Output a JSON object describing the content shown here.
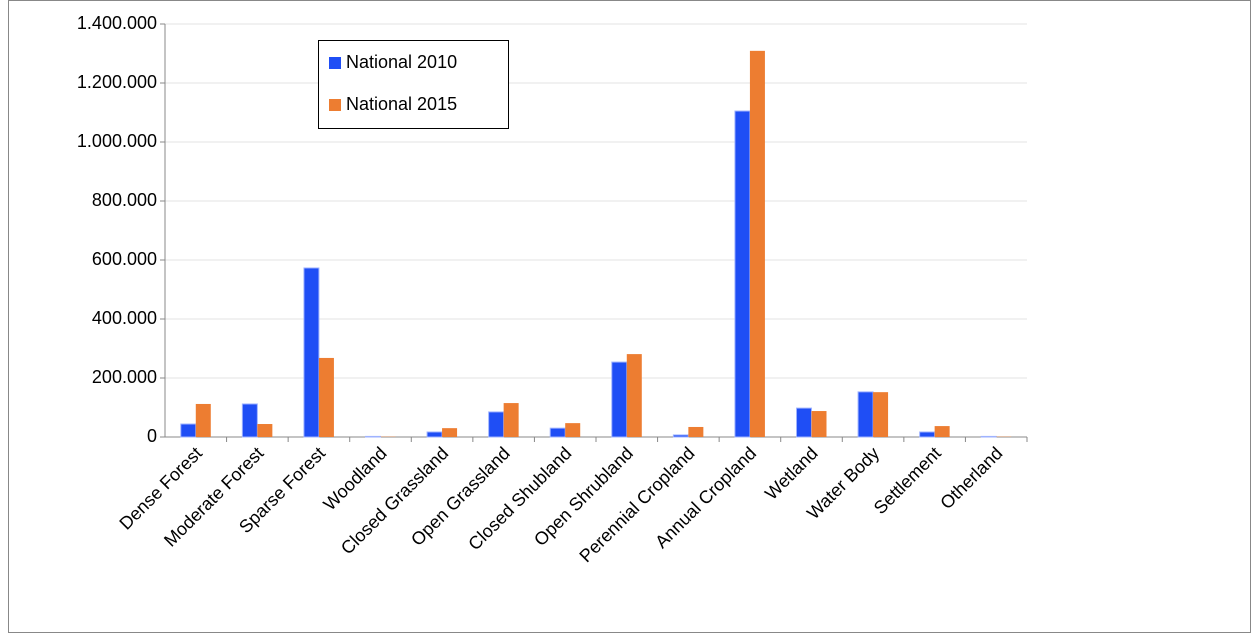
{
  "chart_data": {
    "type": "bar",
    "categories": [
      "Dense Forest",
      "Moderate Forest",
      "Sparse Forest",
      "Woodland",
      "Closed Grassland",
      "Open Grassland",
      "Closed Shubland",
      "Open Shrubland",
      "Perennial Cropland",
      "Annual Cropland",
      "Wetland",
      "Water Body",
      "Settlement",
      "Otherland"
    ],
    "series": [
      {
        "name": "National 2010",
        "color": "#1f4ef5",
        "values": [
          44000,
          112000,
          573000,
          2000,
          17000,
          85000,
          30000,
          254000,
          7000,
          1105000,
          98000,
          153000,
          17000,
          2000
        ]
      },
      {
        "name": "National 2015",
        "color": "#ed7d31",
        "values": [
          112000,
          44000,
          268000,
          1000,
          30000,
          115000,
          47000,
          281000,
          34000,
          1309000,
          88000,
          152000,
          37000,
          1000
        ]
      }
    ],
    "ylim": [
      0,
      1400000
    ],
    "yticks": [
      0,
      {
        "value": 200000,
        "label": "200.000"
      },
      {
        "value": 400000,
        "label": "400.000"
      },
      {
        "value": 600000,
        "label": "600.000"
      },
      {
        "value": 800000,
        "label": "800.000"
      },
      {
        "value": 1000000,
        "label": "1.000.000"
      },
      {
        "value": 1200000,
        "label": "1.200.000"
      },
      {
        "value": 1400000,
        "label": "1.400.000"
      }
    ],
    "grid": true
  }
}
